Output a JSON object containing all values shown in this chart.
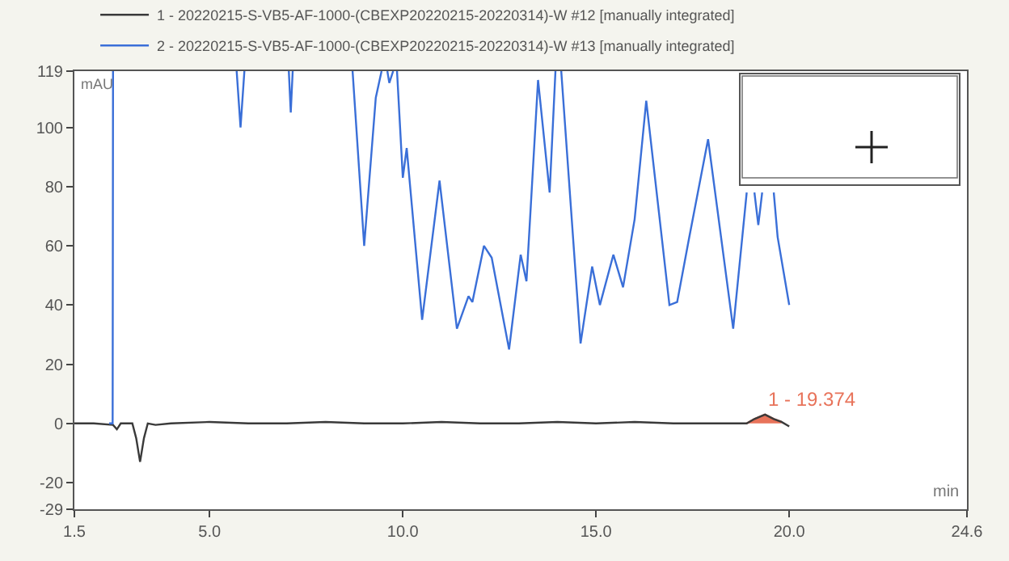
{
  "chart_data": {
    "type": "line",
    "xlabel": "min",
    "ylabel": "mAU",
    "xlim": [
      1.5,
      24.6
    ],
    "xticks": [
      1.5,
      {
        "value": 5,
        "label": "5.0"
      },
      {
        "value": 10,
        "label": "10.0"
      },
      {
        "value": 15,
        "label": "15.0"
      },
      {
        "value": 20,
        "label": "20.0"
      },
      24.6
    ],
    "ylim": [
      -29,
      119
    ],
    "yticks": [
      -29,
      -20,
      0,
      20,
      40,
      60,
      80,
      100,
      119
    ],
    "grid": false,
    "legend": "top",
    "marker": "none",
    "line_style": "solid",
    "annotations": [
      {
        "text": "1 - 19.374",
        "x": 19.374,
        "y": 3
      }
    ],
    "series": [
      {
        "name": "1 - 20220215-S-VB5-AF-1000-(CBEXP20220215-20220314)-W #12 [manually integrated]",
        "color": "#3a3a3a",
        "x": [
          1.5,
          2.0,
          2.5,
          2.6,
          2.7,
          3.0,
          3.1,
          3.2,
          3.3,
          3.4,
          3.6,
          4,
          5,
          6,
          7,
          8,
          9,
          10,
          11,
          12,
          13,
          14,
          15,
          16,
          17,
          18,
          18.9,
          19.1,
          19.374,
          19.6,
          19.8,
          20.0
        ],
        "values": [
          0,
          0,
          -0.5,
          -2,
          0,
          0,
          -5,
          -13,
          -5,
          0,
          -0.5,
          0,
          0.5,
          0,
          0,
          0.5,
          0,
          0,
          0.5,
          0,
          0,
          0.5,
          0,
          0.5,
          0,
          0,
          0,
          1.5,
          3,
          1.5,
          0.5,
          -1
        ]
      },
      {
        "name": "2 - 20220215-S-VB5-AF-1000-(CBEXP20220215-20220314)-W #13 [manually integrated]",
        "color": "#3a6fd8",
        "x": [
          2.4,
          2.49,
          2.5,
          2.55,
          5.7,
          5.8,
          5.9,
          6.0,
          7.05,
          7.1,
          7.15,
          7.2,
          8.7,
          9.0,
          9.3,
          9.45,
          9.5,
          9.6,
          9.65,
          9.75,
          9.8,
          9.85,
          10.0,
          10.1,
          10.5,
          10.95,
          11.4,
          11.7,
          11.8,
          12.1,
          12.3,
          12.75,
          13.05,
          13.2,
          13.5,
          13.8,
          13.95,
          14.0,
          14.1,
          14.6,
          14.9,
          15.1,
          15.45,
          15.7,
          16.0,
          16.3,
          16.9,
          17.1,
          17.4,
          17.9,
          18.55,
          18.9,
          19.0,
          19.1,
          19.2,
          19.3,
          19.4,
          19.6,
          19.7,
          20.0
        ],
        "values": [
          0,
          0,
          119,
          null,
          119,
          100,
          119,
          null,
          119,
          105,
          119,
          null,
          119,
          60,
          110,
          119,
          null,
          119,
          115,
          119,
          null,
          119,
          83,
          93,
          35,
          82,
          32,
          43,
          41,
          60,
          56,
          25,
          57,
          48,
          116,
          78,
          119,
          null,
          119,
          27,
          53,
          40,
          57,
          46,
          69,
          109,
          40,
          41,
          62,
          96,
          32,
          78,
          null,
          78,
          67,
          78,
          null,
          78,
          63,
          40
        ]
      },
      {
        "type": "area",
        "color": "#e8735a",
        "x": [
          18.9,
          19.1,
          19.374,
          19.6,
          19.8
        ],
        "values": [
          0,
          1.5,
          3,
          1.5,
          0.5
        ]
      }
    ]
  }
}
